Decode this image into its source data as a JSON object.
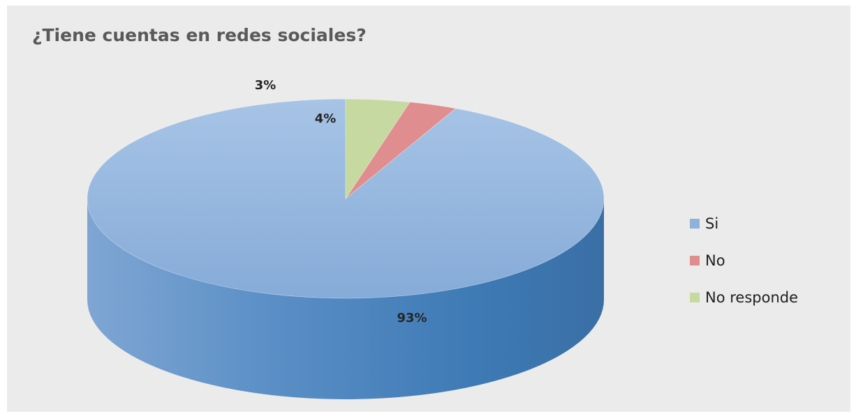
{
  "chart_data": {
    "type": "pie",
    "title": "¿Tiene cuentas en redes sociales?",
    "categories": [
      "Si",
      "No",
      "No responde"
    ],
    "values": [
      93,
      3,
      4
    ],
    "labels": [
      "93%",
      "3%",
      "4%"
    ],
    "unit": "%",
    "legend": "right",
    "three_d": true,
    "colors": [
      "#8fb2dd",
      "#e08d8f",
      "#c6d9a0"
    ],
    "side_colors": [
      "#4f82b8",
      "#b85a5e",
      "#92a86a"
    ]
  }
}
